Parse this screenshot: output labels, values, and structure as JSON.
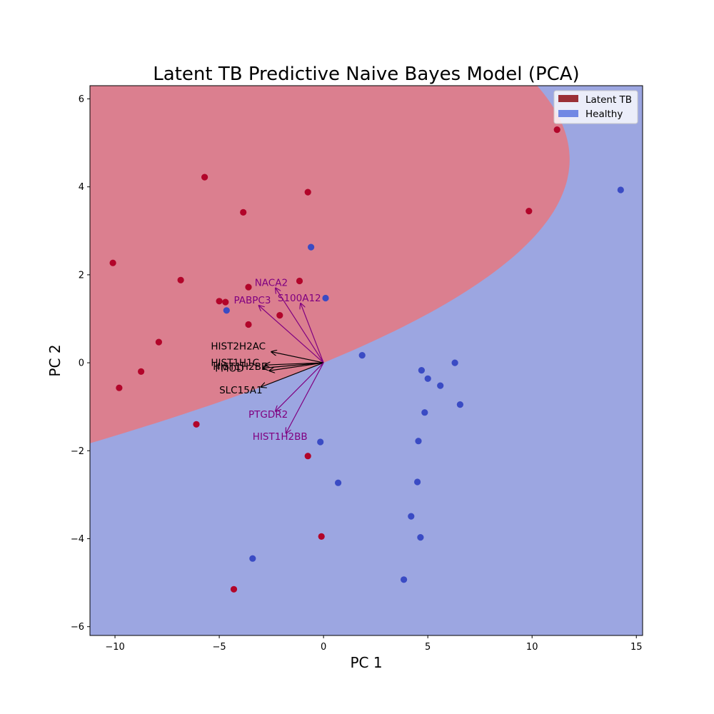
{
  "chart_data": {
    "type": "scatter",
    "title": "Latent TB Predictive Naive Bayes Model (PCA)",
    "xlabel": "PC 1",
    "ylabel": "PC 2",
    "xlim": [
      -11.2,
      15.3
    ],
    "ylim": [
      -6.2,
      6.3
    ],
    "xticks": [
      -10,
      -5,
      0,
      5,
      10,
      15
    ],
    "yticks": [
      -6,
      -4,
      -2,
      0,
      2,
      4,
      6
    ],
    "legend_position": "top-right",
    "colors": {
      "latent_region": "#db7f8f",
      "healthy_region": "#9ca6e1",
      "latent_point": "#b2052a",
      "healthy_point": "#3a4bc4",
      "latent_legend": "#9b3036",
      "healthy_legend": "#7188e4",
      "arrow_black": "#000000",
      "arrow_purple": "#800080"
    },
    "series": [
      {
        "name": "Latent TB",
        "points": [
          [
            -10.1,
            2.27
          ],
          [
            -9.8,
            -0.57
          ],
          [
            -8.75,
            -0.2
          ],
          [
            -7.9,
            0.47
          ],
          [
            -6.85,
            1.88
          ],
          [
            -6.1,
            -1.4
          ],
          [
            -5.7,
            4.22
          ],
          [
            -5.0,
            1.4
          ],
          [
            -4.7,
            1.38
          ],
          [
            -3.85,
            3.42
          ],
          [
            -3.6,
            1.72
          ],
          [
            -3.6,
            0.87
          ],
          [
            -2.1,
            1.08
          ],
          [
            -1.15,
            1.86
          ],
          [
            -0.75,
            3.88
          ],
          [
            -0.75,
            -2.12
          ],
          [
            -0.1,
            -3.95
          ],
          [
            -4.3,
            -5.15
          ],
          [
            9.85,
            3.45
          ],
          [
            11.2,
            5.3
          ]
        ]
      },
      {
        "name": "Healthy",
        "points": [
          [
            -4.65,
            1.19
          ],
          [
            -0.6,
            2.63
          ],
          [
            0.1,
            1.47
          ],
          [
            1.85,
            0.17
          ],
          [
            4.7,
            -0.17
          ],
          [
            5.0,
            -0.36
          ],
          [
            5.6,
            -0.52
          ],
          [
            6.3,
            0.0
          ],
          [
            6.55,
            -0.95
          ],
          [
            4.85,
            -1.13
          ],
          [
            4.55,
            -1.78
          ],
          [
            -0.15,
            -1.8
          ],
          [
            0.7,
            -2.73
          ],
          [
            4.5,
            -2.71
          ],
          [
            4.2,
            -3.49
          ],
          [
            4.65,
            -3.97
          ],
          [
            3.85,
            -4.93
          ],
          [
            -3.4,
            -4.45
          ],
          [
            14.25,
            3.93
          ]
        ]
      }
    ],
    "decision_boundary": {
      "vertex": [
        11.8,
        4.62
      ],
      "passes_through": [
        [
          -4.1,
          -6.2
        ],
        [
          0.0,
          0.0
        ],
        [
          15.3,
          4.3
        ]
      ]
    },
    "loadings": [
      {
        "label": "NACA2",
        "dx": -2.3,
        "dy": 1.7,
        "lx": -3.3,
        "ly": 1.75,
        "color": "purple"
      },
      {
        "label": "S100A12",
        "dx": -1.1,
        "dy": 1.35,
        "lx": -2.2,
        "ly": 1.4,
        "color": "purple"
      },
      {
        "label": "PABPC3",
        "dx": -3.1,
        "dy": 1.3,
        "lx": -4.3,
        "ly": 1.35,
        "color": "purple"
      },
      {
        "label": "HIST2H2AC",
        "dx": -2.5,
        "dy": 0.25,
        "lx": -5.4,
        "ly": 0.3,
        "color": "black"
      },
      {
        "label": "HIST1H1C",
        "dx": -2.8,
        "dy": -0.05,
        "lx": -5.4,
        "ly": -0.07,
        "color": "black"
      },
      {
        "label": "HIST1H2BE",
        "dx": -2.9,
        "dy": -0.12,
        "lx": -5.3,
        "ly": -0.16,
        "color": "black"
      },
      {
        "label": "FMOD",
        "dx": -2.6,
        "dy": -0.18,
        "lx": -5.2,
        "ly": -0.2,
        "color": "black"
      },
      {
        "label": "SLC15A1",
        "dx": -3.0,
        "dy": -0.55,
        "lx": -5.0,
        "ly": -0.7,
        "color": "black"
      },
      {
        "label": "PTGDR2",
        "dx": -2.3,
        "dy": -1.1,
        "lx": -3.6,
        "ly": -1.25,
        "color": "purple"
      },
      {
        "label": "HIST1H2BB",
        "dx": -1.8,
        "dy": -1.6,
        "lx": -3.4,
        "ly": -1.75,
        "color": "purple"
      }
    ]
  }
}
